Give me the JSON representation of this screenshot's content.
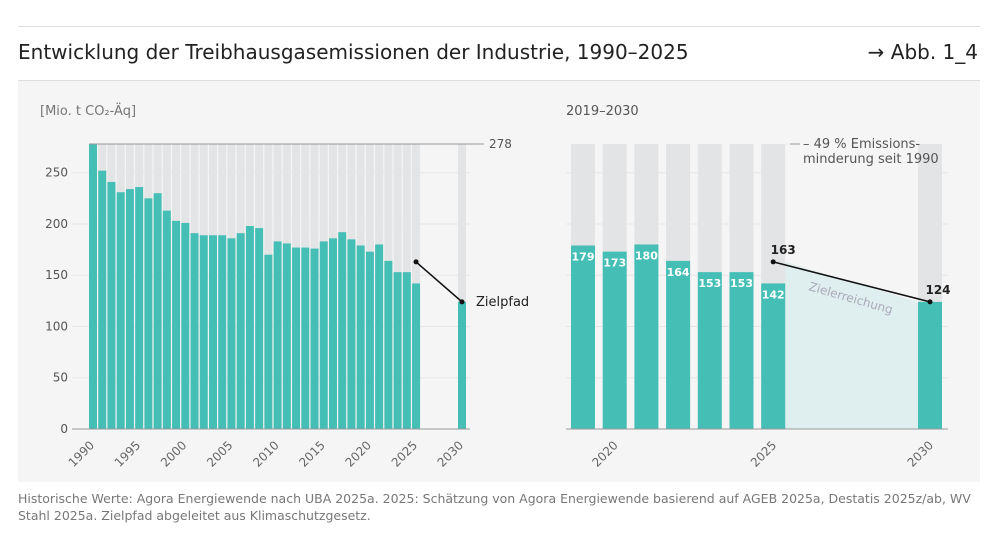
{
  "header": {
    "title": "Entwicklung der Treibhausgasemissionen der Industrie, 1990–2025",
    "figure_ref": "→ Abb. 1_4"
  },
  "footer": {
    "source": "Historische Werte: Agora Energiewende nach UBA 2025a. 2025: Schätzung von Agora Energiewende basierend auf AGEB 2025a, Destatis 2025z/ab, WV Stahl 2025a. Zielpfad abgeleitet aus Klimaschutzgesetz."
  },
  "colors": {
    "bar": "#45bfb6",
    "background_bar": "#e3e4e5",
    "target_area": "#dfeeee",
    "line": "#111111"
  },
  "chart_data": [
    {
      "type": "bar",
      "ylabel": "[Mio. t CO₂-Äq]",
      "ylim": [
        0,
        278
      ],
      "yticks": [
        0,
        50,
        100,
        150,
        200,
        250
      ],
      "xticks": [
        "1990",
        "1995",
        "2000",
        "2005",
        "2010",
        "2015",
        "2020",
        "2025",
        "2030"
      ],
      "max_label": "278",
      "x": [
        1990,
        1991,
        1992,
        1993,
        1994,
        1995,
        1996,
        1997,
        1998,
        1999,
        2000,
        2001,
        2002,
        2003,
        2004,
        2005,
        2006,
        2007,
        2008,
        2009,
        2010,
        2011,
        2012,
        2013,
        2014,
        2015,
        2016,
        2017,
        2018,
        2019,
        2020,
        2021,
        2022,
        2023,
        2024,
        2025,
        2030
      ],
      "values": [
        278,
        252,
        241,
        231,
        234,
        236,
        225,
        230,
        213,
        203,
        201,
        191,
        189,
        189,
        189,
        186,
        191,
        198,
        196,
        170,
        183,
        181,
        177,
        177,
        176,
        183,
        186,
        192,
        185,
        179,
        173,
        180,
        164,
        153,
        153,
        142,
        124
      ],
      "target_path": {
        "label": "Zielpfad",
        "points": [
          [
            2025,
            163
          ],
          [
            2030,
            124
          ]
        ]
      }
    },
    {
      "type": "bar",
      "title": "2019–2030",
      "ylim": [
        0,
        278
      ],
      "xticks": [
        "2020",
        "2025",
        "2030"
      ],
      "x": [
        2019,
        2020,
        2021,
        2022,
        2023,
        2024,
        2025,
        2030
      ],
      "values": [
        179,
        173,
        180,
        164,
        153,
        153,
        142,
        124
      ],
      "data_labels": [
        "179",
        "173",
        "180",
        "164",
        "153",
        "153",
        "142",
        "124"
      ],
      "annotation": [
        "– 49 % Emissions-",
        "minderung seit 1990"
      ],
      "target_path": {
        "label": "Zielerreichung",
        "points": [
          [
            2025,
            163
          ],
          [
            2030,
            124
          ]
        ],
        "point_labels": [
          "163",
          "124"
        ]
      }
    }
  ]
}
